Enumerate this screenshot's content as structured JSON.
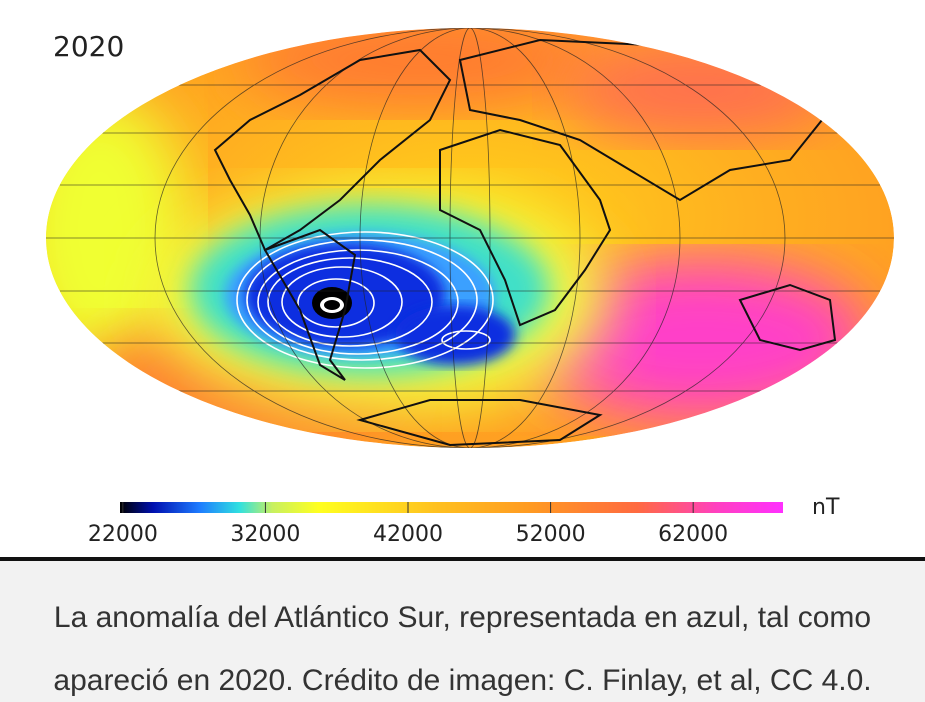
{
  "map": {
    "title": "2020"
  },
  "colorbar": {
    "unit": "nT",
    "lim": [
      21800,
      68300
    ],
    "ticks": [
      22000,
      32000,
      42000,
      52000,
      62000
    ]
  },
  "caption": [
    "La anomalía del Atlántico Sur, representada en azul, tal como",
    "apareció en 2020. Crédito de imagen: C. Finlay, et al, CC 4.0."
  ]
}
